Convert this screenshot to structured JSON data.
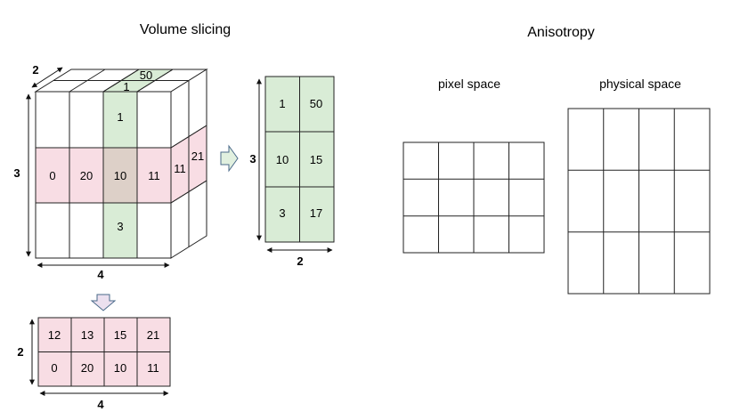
{
  "titles": {
    "volume_slicing": "Volume slicing",
    "anisotropy": "Anisotropy",
    "pixel_space": "pixel space",
    "physical_space": "physical space"
  },
  "cube": {
    "front": {
      "top_middle": "1",
      "middle_row": [
        "0",
        "20",
        "10",
        "11"
      ],
      "bottom_middle": "3"
    },
    "top_face": {
      "front": "1",
      "back": "50"
    },
    "side_face": {
      "front": "11",
      "back": "21"
    },
    "dims": {
      "height": "3",
      "width": "4",
      "depth": "2"
    }
  },
  "slice_right": {
    "rows": [
      [
        "1",
        "50"
      ],
      [
        "10",
        "15"
      ],
      [
        "3",
        "17"
      ]
    ],
    "dims": {
      "height": "3",
      "width": "2"
    }
  },
  "slice_bottom": {
    "rows": [
      [
        "12",
        "13",
        "15",
        "21"
      ],
      [
        "0",
        "20",
        "10",
        "11"
      ]
    ],
    "dims": {
      "height": "2",
      "width": "4"
    }
  },
  "colors": {
    "green": "#d9ecd6",
    "pink": "#f8dde4",
    "overlap": "#ddd0c8",
    "arrow_right": "#e1f0df",
    "arrow_down": "#ebe0ef"
  }
}
